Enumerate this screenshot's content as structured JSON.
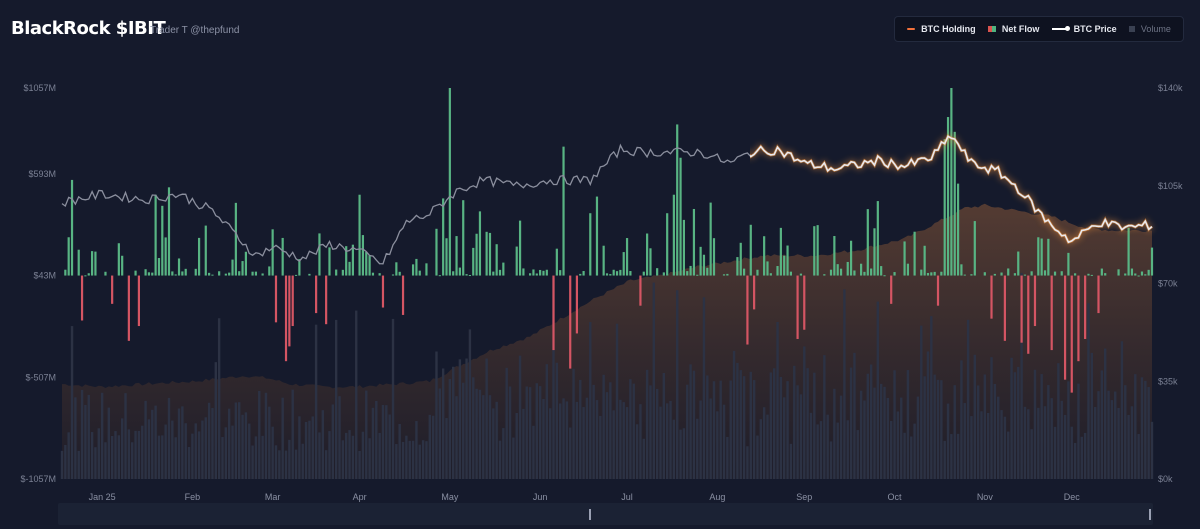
{
  "header": {
    "title": "BlackRock $IBIT",
    "subtitle": "Trader T @thepfund"
  },
  "legend": {
    "items": [
      {
        "name": "holding",
        "label": "BTC Holding",
        "color": "#f2713b"
      },
      {
        "name": "flow",
        "label": "Net Flow"
      },
      {
        "name": "price",
        "label": "BTC Price",
        "color": "#ffffff"
      },
      {
        "name": "volume",
        "label": "Volume",
        "color": "#3a4152"
      }
    ]
  },
  "colors": {
    "inflow": "#58b483",
    "outflow": "#d45563",
    "price": "#e9e9ee",
    "price_glow": "#ff9a3c",
    "holding_fill": "#3a2b27",
    "volume": "#2c3244"
  },
  "chart_data": {
    "type": "bar",
    "left_axis": {
      "ticks": [
        "$1057M",
        "$593M",
        "$43M",
        "$-507M",
        "$-1057M"
      ],
      "values": [
        1057,
        593,
        43,
        -507,
        -1057
      ],
      "range": [
        -1057,
        1057
      ]
    },
    "right_axis": {
      "ticks": [
        "$140k",
        "$105k",
        "$70k",
        "$35k",
        "$0k"
      ],
      "values": [
        140,
        105,
        70,
        35,
        0
      ],
      "range": [
        0,
        140
      ]
    },
    "months": [
      "Jan 25",
      "Feb",
      "Mar",
      "Apr",
      "May",
      "Jun",
      "Jul",
      "Aug",
      "Sep",
      "Oct",
      "Nov",
      "Dec"
    ],
    "price_knots": [
      [
        0,
        99
      ],
      [
        12,
        102
      ],
      [
        25,
        100
      ],
      [
        35,
        102
      ],
      [
        45,
        96
      ],
      [
        58,
        80
      ],
      [
        63,
        83
      ],
      [
        72,
        79
      ],
      [
        80,
        84
      ],
      [
        88,
        82
      ],
      [
        96,
        77
      ],
      [
        103,
        92
      ],
      [
        110,
        95
      ],
      [
        118,
        103
      ],
      [
        126,
        107
      ],
      [
        136,
        105
      ],
      [
        146,
        107
      ],
      [
        158,
        107
      ],
      [
        167,
        118
      ],
      [
        174,
        117
      ],
      [
        182,
        117
      ],
      [
        191,
        117
      ],
      [
        200,
        113
      ],
      [
        206,
        117
      ],
      [
        214,
        118
      ],
      [
        222,
        113
      ],
      [
        232,
        111
      ],
      [
        244,
        114
      ],
      [
        252,
        112
      ],
      [
        260,
        115
      ],
      [
        266,
        123
      ],
      [
        272,
        113
      ],
      [
        280,
        110
      ],
      [
        286,
        104
      ],
      [
        294,
        93
      ],
      [
        302,
        85
      ],
      [
        310,
        92
      ],
      [
        318,
        90
      ],
      [
        326,
        91
      ]
    ],
    "holding_knots": [
      [
        0,
        34
      ],
      [
        12,
        33
      ],
      [
        25,
        34
      ],
      [
        40,
        35
      ],
      [
        55,
        37
      ],
      [
        62,
        36
      ],
      [
        68,
        34
      ],
      [
        78,
        33
      ],
      [
        88,
        33
      ],
      [
        100,
        34
      ],
      [
        110,
        35
      ],
      [
        118,
        40
      ],
      [
        128,
        46
      ],
      [
        140,
        51
      ],
      [
        150,
        58
      ],
      [
        160,
        65
      ],
      [
        170,
        71
      ],
      [
        180,
        73
      ],
      [
        190,
        76
      ],
      [
        200,
        78
      ],
      [
        210,
        80
      ],
      [
        218,
        80
      ],
      [
        225,
        80
      ],
      [
        238,
        82
      ],
      [
        252,
        86
      ],
      [
        262,
        92
      ],
      [
        270,
        97
      ],
      [
        276,
        98
      ],
      [
        286,
        96
      ],
      [
        296,
        94
      ],
      [
        306,
        90
      ],
      [
        314,
        89
      ],
      [
        326,
        89
      ]
    ],
    "flow_spikes": [
      [
        2,
        250
      ],
      [
        3,
        560
      ],
      [
        28,
        480
      ],
      [
        30,
        420
      ],
      [
        32,
        520
      ],
      [
        89,
        480
      ],
      [
        114,
        460
      ],
      [
        116,
        1057
      ],
      [
        125,
        390
      ],
      [
        137,
        340
      ],
      [
        150,
        740
      ],
      [
        158,
        380
      ],
      [
        160,
        470
      ],
      [
        181,
        380
      ],
      [
        183,
        480
      ],
      [
        184,
        860
      ],
      [
        185,
        680
      ],
      [
        203,
        220
      ],
      [
        225,
        310
      ],
      [
        255,
        280
      ],
      [
        264,
        780
      ],
      [
        265,
        900
      ],
      [
        266,
        1057
      ],
      [
        267,
        820
      ],
      [
        268,
        540
      ],
      [
        300,
        180
      ]
    ],
    "flow_outflows": [
      [
        6,
        -200
      ],
      [
        15,
        -110
      ],
      [
        20,
        -310
      ],
      [
        23,
        -230
      ],
      [
        64,
        -210
      ],
      [
        67,
        -420
      ],
      [
        68,
        -340
      ],
      [
        69,
        -230
      ],
      [
        76,
        -160
      ],
      [
        79,
        -220
      ],
      [
        96,
        -130
      ],
      [
        102,
        -170
      ],
      [
        147,
        -360
      ],
      [
        152,
        -460
      ],
      [
        154,
        -270
      ],
      [
        173,
        -120
      ],
      [
        205,
        -330
      ],
      [
        207,
        -140
      ],
      [
        220,
        -300
      ],
      [
        222,
        -250
      ],
      [
        248,
        -110
      ],
      [
        262,
        -120
      ],
      [
        278,
        -190
      ],
      [
        282,
        -310
      ],
      [
        287,
        -320
      ],
      [
        289,
        -380
      ],
      [
        291,
        -230
      ],
      [
        296,
        -360
      ],
      [
        300,
        -520
      ],
      [
        302,
        -590
      ],
      [
        304,
        -420
      ],
      [
        306,
        -300
      ],
      [
        310,
        -160
      ]
    ]
  },
  "navigator": {
    "start": 0.485,
    "end": 0.998
  }
}
